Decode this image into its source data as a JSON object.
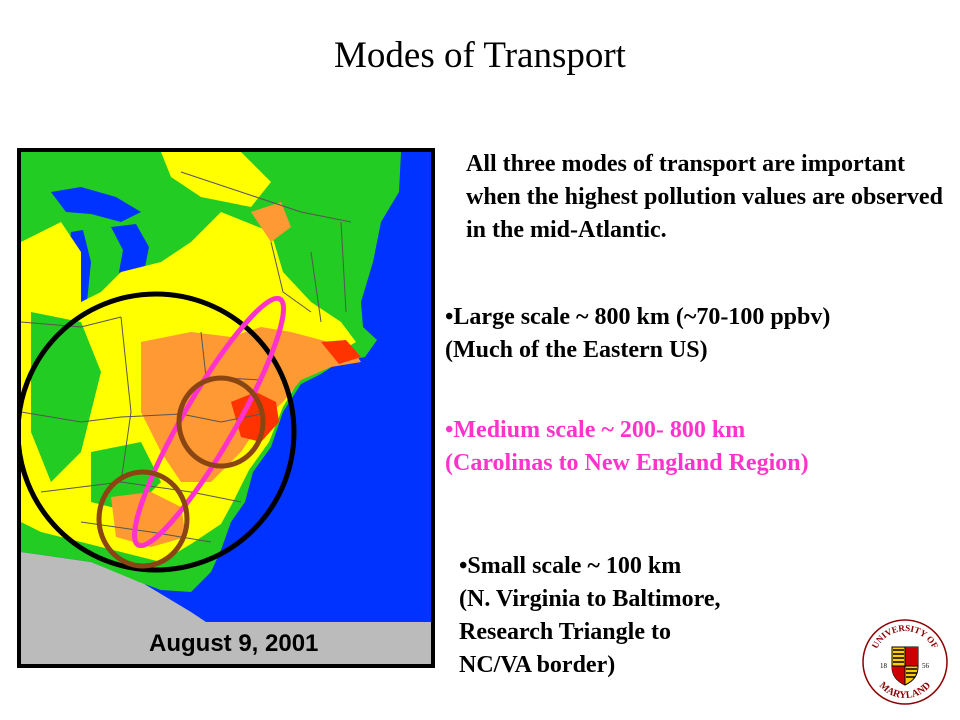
{
  "slide": {
    "title": "Modes of Transport",
    "intro": "All three modes of transport are important when the highest pollution values are observed in the mid-Atlantic.",
    "bullets": [
      {
        "line1": "•Large scale ~ 800 km (~70-100 ppbv)",
        "line2": "(Much of the Eastern US)",
        "color": "#000000"
      },
      {
        "line1": "•Medium scale ~ 200- 800 km",
        "line2": "(Carolinas to New England Region)",
        "color": "#ff33cc"
      },
      {
        "line1": "•Small scale ~ 100 km",
        "line2": "(N. Virginia to Baltimore,",
        "line3": "Research Triangle to",
        "line4": "NC/VA border)",
        "color": "#000000"
      }
    ]
  },
  "map": {
    "date_label": "August 9, 2001",
    "colors": {
      "ocean": "#0033ff",
      "land_low": "#22cc22",
      "land_mid": "#ffff00",
      "land_high": "#ff9933",
      "land_peak": "#ff3300",
      "outside": "#bbbbbb",
      "large_scale_circle": "#000000",
      "medium_scale_ellipse": "#ff33cc",
      "small_scale_circles": "#8b4513"
    }
  },
  "logo": {
    "text_top": "UNIVERSITY OF",
    "text_bottom": "MARYLAND",
    "year_left": "18",
    "year_right": "56"
  }
}
